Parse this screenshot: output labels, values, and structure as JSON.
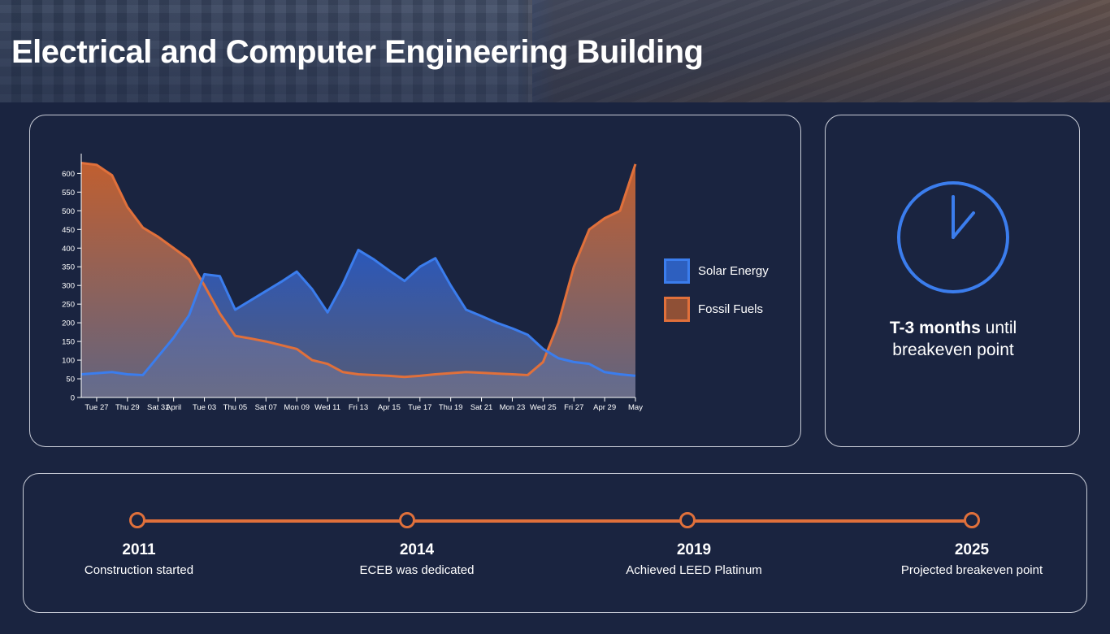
{
  "header": {
    "title": "Electrical and Computer Engineering Building"
  },
  "colors": {
    "background": "#1a2440",
    "solar": "#3b7ded",
    "fossil": "#e0703b",
    "border": "#c7cbd6"
  },
  "chart_data": {
    "type": "area",
    "x": [
      "Mar 26",
      "Mar 27",
      "Mar 28",
      "Mar 29",
      "Mar 30",
      "Mar 31",
      "Apr 01",
      "Apr 02",
      "Apr 03",
      "Apr 04",
      "Apr 05",
      "Apr 06",
      "Apr 07",
      "Apr 08",
      "Apr 09",
      "Apr 10",
      "Apr 11",
      "Apr 12",
      "Apr 13",
      "Apr 14",
      "Apr 15",
      "Apr 16",
      "Apr 17",
      "Apr 18",
      "Apr 19",
      "Apr 20",
      "Apr 21",
      "Apr 22",
      "Apr 23",
      "Apr 24",
      "Apr 25",
      "Apr 26",
      "Apr 27",
      "Apr 28",
      "Apr 29",
      "Apr 30",
      "May 01"
    ],
    "series": [
      {
        "name": "Solar Energy",
        "values": [
          62,
          65,
          68,
          62,
          60,
          110,
          160,
          220,
          330,
          325,
          235,
          260,
          285,
          310,
          337,
          290,
          228,
          305,
          395,
          370,
          340,
          312,
          350,
          373,
          300,
          235,
          218,
          200,
          185,
          168,
          130,
          105,
          95,
          90,
          68,
          62,
          58
        ]
      },
      {
        "name": "Fossil Fuels",
        "values": [
          628,
          623,
          595,
          510,
          455,
          430,
          400,
          370,
          300,
          225,
          165,
          158,
          150,
          140,
          130,
          100,
          90,
          68,
          62,
          60,
          58,
          55,
          58,
          62,
          65,
          68,
          66,
          64,
          62,
          60,
          95,
          200,
          350,
          450,
          480,
          500,
          625
        ]
      }
    ],
    "xticks": [
      "Tue 27",
      "Thu 29",
      "Sat 31",
      "April",
      "Tue 03",
      "Thu 05",
      "Sat 07",
      "Mon 09",
      "Wed 11",
      "Fri 13",
      "Apr 15",
      "Tue 17",
      "Thu 19",
      "Sat 21",
      "Mon 23",
      "Wed 25",
      "Fri 27",
      "Apr 29",
      "May"
    ],
    "yticks": [
      0,
      50,
      100,
      150,
      200,
      250,
      300,
      350,
      400,
      450,
      500,
      550,
      600
    ],
    "ylim": [
      0,
      640
    ],
    "legend_position": "right",
    "grid": false
  },
  "legend": {
    "items": [
      {
        "label": "Solar Energy"
      },
      {
        "label": "Fossil Fuels"
      }
    ]
  },
  "timer": {
    "bold": "T-3 months",
    "rest": " until",
    "line2": "breakeven point",
    "icon": "clock-icon"
  },
  "timeline": {
    "events": [
      {
        "year": "2011",
        "desc": "Construction started"
      },
      {
        "year": "2014",
        "desc": "ECEB was dedicated"
      },
      {
        "year": "2019",
        "desc": "Achieved LEED Platinum"
      },
      {
        "year": "2025",
        "desc": "Projected breakeven point"
      }
    ]
  }
}
